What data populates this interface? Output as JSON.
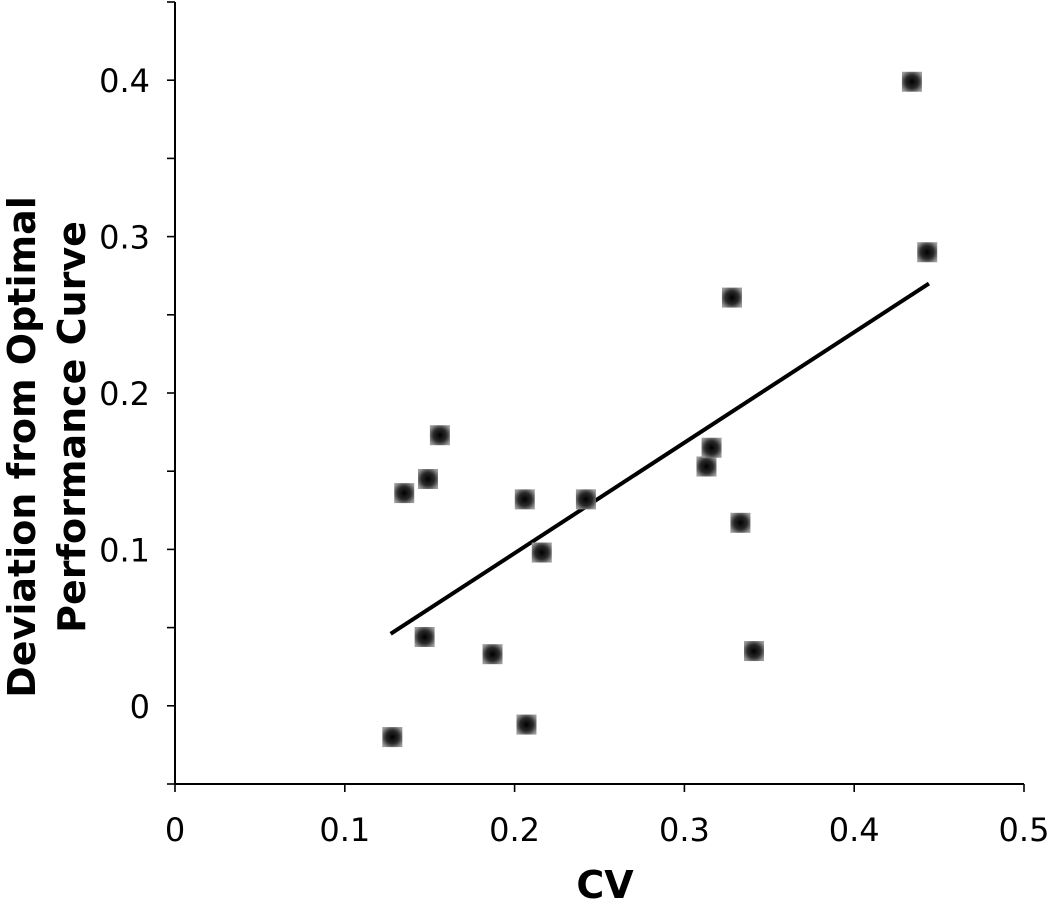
{
  "chart_data": {
    "type": "scatter",
    "title": "",
    "xlabel": "CV",
    "ylabel_lines": [
      "Deviation from Optimal",
      "Performance Curve"
    ],
    "xlim": [
      0,
      0.5
    ],
    "ylim": [
      -0.05,
      0.45
    ],
    "x_ticks": [
      0,
      0.1,
      0.2,
      0.3,
      0.4,
      0.5
    ],
    "x_tick_labels": [
      "0",
      "0.1",
      "0.2",
      "0.3",
      "0.4",
      "0.5"
    ],
    "y_ticks": [
      0,
      0.1,
      0.2,
      0.3,
      0.4
    ],
    "y_tick_labels": [
      "0",
      "0.1",
      "0.2",
      "0.3",
      "0.4"
    ],
    "y_minor_ticks": [
      -0.05,
      0.05,
      0.15,
      0.25,
      0.35,
      0.45
    ],
    "grid": false,
    "series": [
      {
        "points": [
          {
            "x": 0.128,
            "y": -0.02
          },
          {
            "x": 0.135,
            "y": 0.136
          },
          {
            "x": 0.147,
            "y": 0.044
          },
          {
            "x": 0.149,
            "y": 0.145
          },
          {
            "x": 0.156,
            "y": 0.173
          },
          {
            "x": 0.187,
            "y": 0.033
          },
          {
            "x": 0.206,
            "y": 0.132
          },
          {
            "x": 0.207,
            "y": -0.012
          },
          {
            "x": 0.216,
            "y": 0.098
          },
          {
            "x": 0.242,
            "y": 0.132
          },
          {
            "x": 0.313,
            "y": 0.153
          },
          {
            "x": 0.316,
            "y": 0.165
          },
          {
            "x": 0.328,
            "y": 0.261
          },
          {
            "x": 0.333,
            "y": 0.117
          },
          {
            "x": 0.341,
            "y": 0.035
          },
          {
            "x": 0.434,
            "y": 0.399
          },
          {
            "x": 0.443,
            "y": 0.29
          }
        ],
        "color": "#2a2a2a",
        "marker": "square"
      }
    ],
    "trendline": {
      "x": [
        0.127,
        0.444
      ],
      "y": [
        0.046,
        0.27
      ],
      "color": "#000000"
    }
  }
}
